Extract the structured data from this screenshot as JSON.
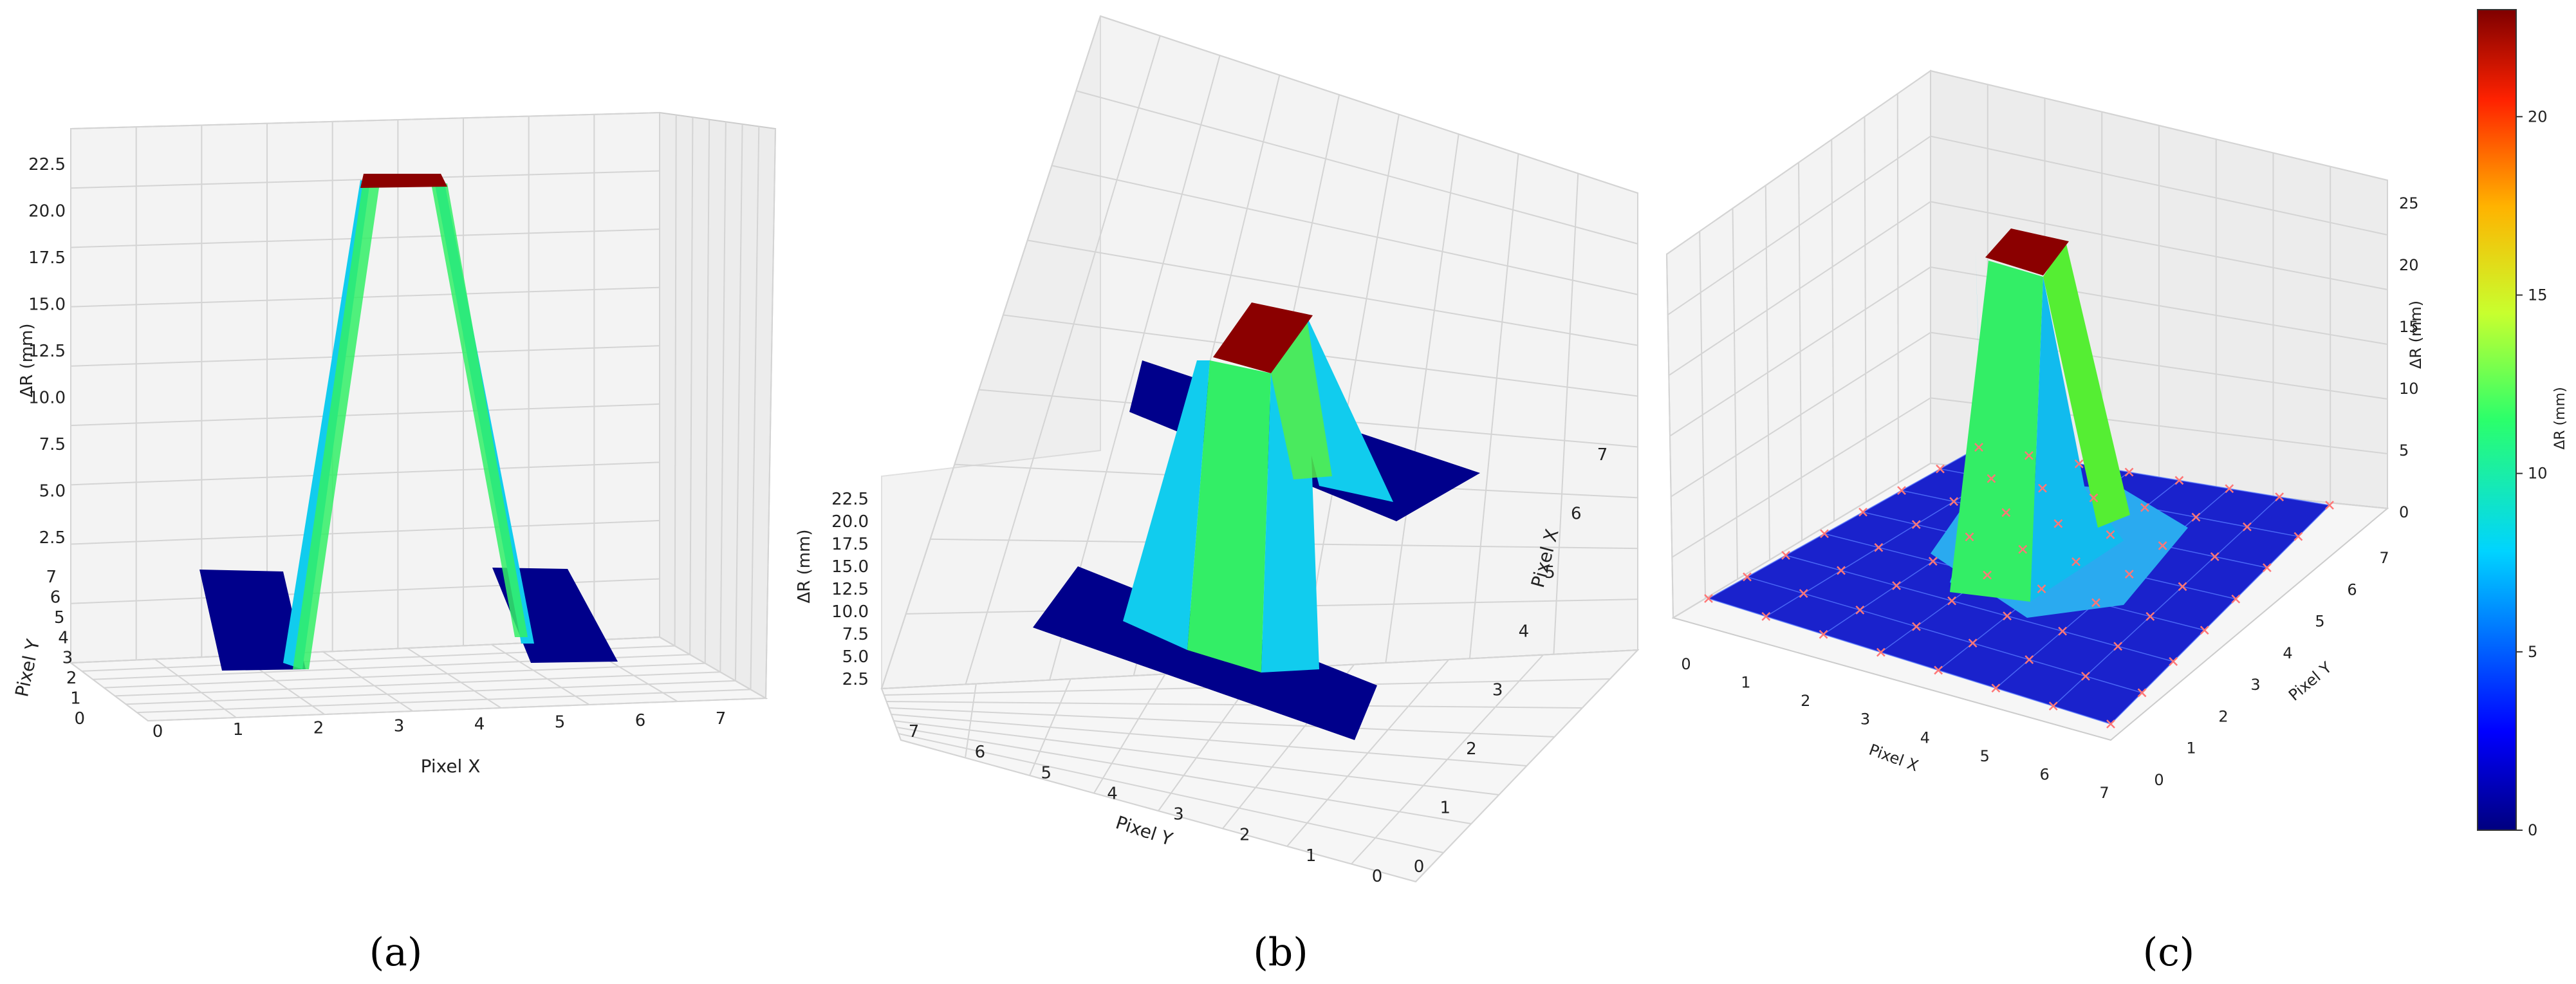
{
  "chart_data": [
    {
      "type": "surface3d",
      "panel_caption": "(a)",
      "xlabel": "Pixel X",
      "ylabel": "Pixel Y",
      "zlabel": "ΔR (mm)",
      "x_ticks": [
        "0",
        "1",
        "2",
        "3",
        "4",
        "5",
        "6",
        "7"
      ],
      "y_ticks": [
        "0",
        "1",
        "2",
        "3",
        "4",
        "5",
        "6",
        "7"
      ],
      "z_ticks": [
        "2.5",
        "5.0",
        "7.5",
        "10.0",
        "12.5",
        "15.0",
        "17.5",
        "20.0",
        "22.5"
      ],
      "peak_value": 23,
      "floor_value": 0
    },
    {
      "type": "surface3d",
      "panel_caption": "(b)",
      "xlabel": "Pixel X",
      "ylabel": "Pixel Y",
      "zlabel": "ΔR (mm)",
      "x_ticks": [
        "0",
        "1",
        "2",
        "3",
        "4",
        "5",
        "6",
        "7"
      ],
      "y_ticks": [
        "0",
        "1",
        "2",
        "3",
        "4",
        "5",
        "6",
        "7"
      ],
      "z_ticks": [
        "2.5",
        "5.0",
        "7.5",
        "10.0",
        "12.5",
        "15.0",
        "17.5",
        "20.0",
        "22.5"
      ],
      "peak_value": 23,
      "floor_value": 0
    },
    {
      "type": "surface3d",
      "panel_caption": "(c)",
      "xlabel": "Pixel X",
      "ylabel": "Pixel Y",
      "zlabel": "ΔR (mm)",
      "x_ticks": [
        "0",
        "1",
        "2",
        "3",
        "4",
        "5",
        "6",
        "7"
      ],
      "y_ticks": [
        "0",
        "1",
        "2",
        "3",
        "4",
        "5",
        "6",
        "7"
      ],
      "z_ticks": [
        "0",
        "5",
        "10",
        "15",
        "20",
        "25"
      ],
      "peak_value": 23,
      "floor_value": 0
    }
  ],
  "colorbar": {
    "label": "ΔR (mm)",
    "ticks": [
      "0",
      "5",
      "10",
      "15",
      "20"
    ],
    "range": [
      0,
      23
    ],
    "colormap": "jet"
  },
  "colors": {
    "floor": "#00008b",
    "peak": "#8b0000",
    "green_face": "#22ee66",
    "cyan_face": "#11ccee",
    "marker": "#ff7777"
  }
}
